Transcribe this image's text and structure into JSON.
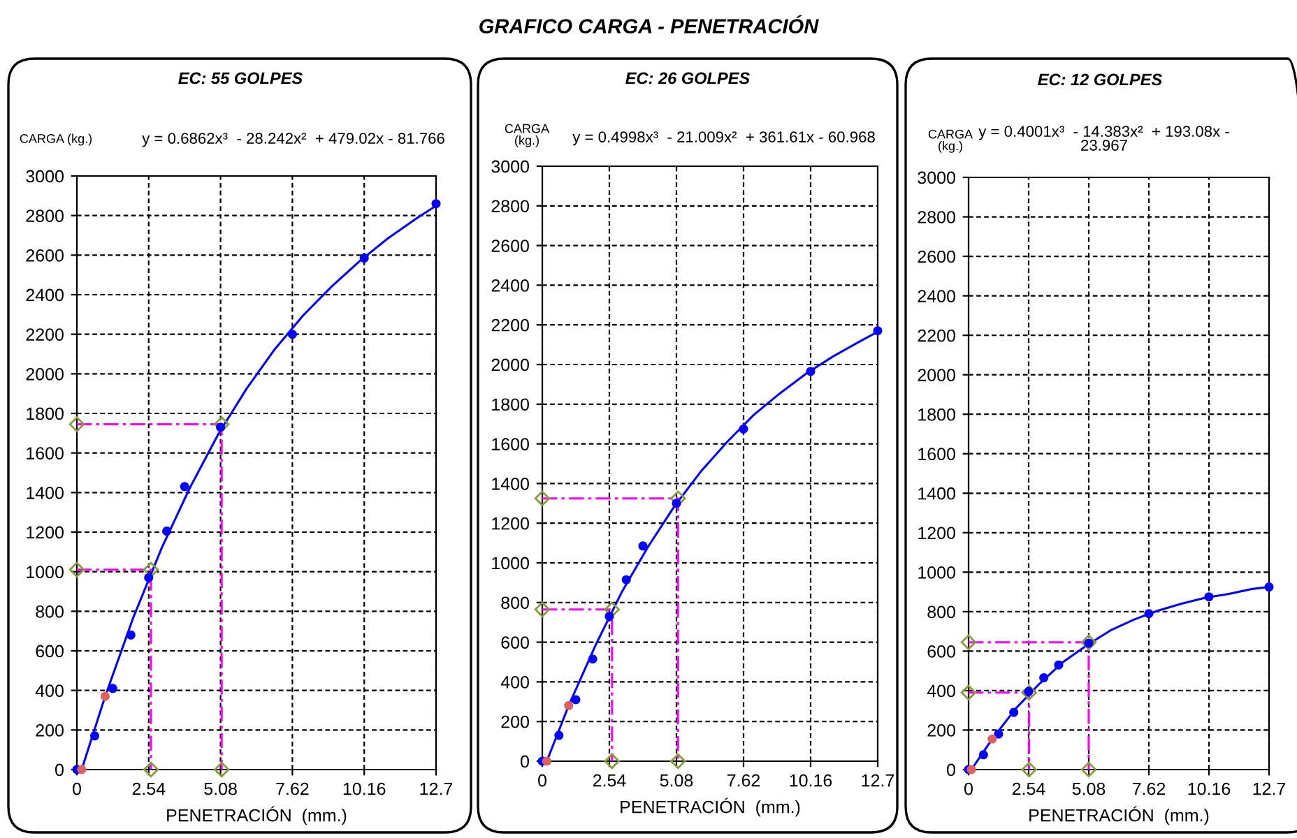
{
  "chart_data": [
    {
      "type": "scatter",
      "title": "EC: 55 GOLPES",
      "xlabel": "PENETRACIÓN  (mm.)",
      "ylabel": "CARGA (kg.)",
      "annotations": [
        "GRAFICO CARGA - PENETRACIÓN",
        "y = 0.6862x³  - 28.242x²  + 479.02x - 81.766"
      ],
      "xlim": [
        0,
        12.7
      ],
      "xticks": [
        0,
        2.54,
        5.08,
        7.62,
        10.16,
        12.7
      ],
      "ylim": [
        0,
        3000
      ],
      "yticks": [
        0,
        200,
        400,
        600,
        800,
        1000,
        1200,
        1400,
        1600,
        1800,
        2000,
        2200,
        2400,
        2600,
        2800,
        3000
      ],
      "grid": true,
      "series": [
        {
          "color": "#0000ff",
          "marker": "circle",
          "x": [
            0,
            0.63,
            1.27,
            1.91,
            2.54,
            3.18,
            3.81,
            5.08,
            7.62,
            10.16,
            12.7
          ],
          "values": [
            0,
            170,
            410,
            680,
            970,
            1205,
            1430,
            1730,
            2200,
            2585,
            2860
          ]
        },
        {
          "type": "line",
          "color": "#0000ff",
          "line_style": "solid",
          "marker": "none",
          "x": [
            0.17,
            1,
            2,
            3,
            4,
            5,
            6,
            7,
            8,
            9,
            10,
            11,
            12,
            12.7
          ],
          "values": [
            0,
            370,
            770,
            1120,
            1425,
            1695,
            1925,
            2125,
            2295,
            2440,
            2570,
            2685,
            2785,
            2850
          ]
        },
        {
          "type": "line",
          "color": "#ff00ff",
          "line_style": "dashed",
          "marker": "diamond",
          "x": [
            0,
            2.62,
            2.62
          ],
          "values": [
            1010,
            1010,
            0
          ]
        },
        {
          "type": "line",
          "color": "#ff00ff",
          "line_style": "dashed",
          "marker": "diamond",
          "x": [
            0,
            5.12,
            5.12
          ],
          "values": [
            1745,
            1745,
            0
          ]
        },
        {
          "color": "#e06060",
          "marker": "circle",
          "x": [
            0.17,
            1
          ],
          "values": [
            0,
            370
          ]
        }
      ]
    },
    {
      "type": "scatter",
      "title": "EC: 26 GOLPES",
      "xlabel": "PENETRACIÓN  (mm.)",
      "ylabel": "CARGA\n(kg.)",
      "annotations": [
        "y = 0.4998x³  - 21.009x²  + 361.61x - 60.968"
      ],
      "xlim": [
        0,
        12.7
      ],
      "xticks": [
        0,
        2.54,
        5.08,
        7.62,
        10.16,
        12.7
      ],
      "ylim": [
        0,
        3000
      ],
      "yticks": [
        0,
        200,
        400,
        600,
        800,
        1000,
        1200,
        1400,
        1600,
        1800,
        2000,
        2200,
        2400,
        2600,
        2800,
        3000
      ],
      "grid": true,
      "series": [
        {
          "color": "#0000ff",
          "marker": "circle",
          "x": [
            0,
            0.63,
            1.27,
            1.91,
            2.54,
            3.18,
            3.81,
            5.08,
            7.62,
            10.16,
            12.7
          ],
          "values": [
            0,
            130,
            310,
            515,
            730,
            915,
            1085,
            1300,
            1675,
            1965,
            2170
          ]
        },
        {
          "type": "line",
          "color": "#0000ff",
          "line_style": "solid",
          "marker": "none",
          "x": [
            0.17,
            1,
            2,
            3,
            4,
            5,
            6,
            7,
            8,
            9,
            10,
            11,
            12,
            12.7
          ],
          "values": [
            0,
            280,
            580,
            850,
            1080,
            1285,
            1460,
            1610,
            1745,
            1855,
            1955,
            2040,
            2115,
            2165
          ]
        },
        {
          "type": "line",
          "color": "#ff00ff",
          "line_style": "dashed",
          "marker": "diamond",
          "x": [
            0,
            2.64,
            2.64
          ],
          "values": [
            765,
            765,
            0
          ]
        },
        {
          "type": "line",
          "color": "#ff00ff",
          "line_style": "dashed",
          "marker": "diamond",
          "x": [
            0,
            5.14,
            5.14
          ],
          "values": [
            1325,
            1325,
            0
          ]
        },
        {
          "color": "#e06060",
          "marker": "circle",
          "x": [
            0.17,
            1
          ],
          "values": [
            0,
            280
          ]
        }
      ]
    },
    {
      "type": "scatter",
      "title": "EC: 12 GOLPES",
      "xlabel": "PENETRACIÓN  (mm.)",
      "ylabel": "CARGA\n(kg.)",
      "annotations": [
        "y = 0.4001x³  - 14.383x²  + 193.08x -\n23.967"
      ],
      "xlim": [
        0,
        12.7
      ],
      "xticks": [
        0,
        2.54,
        5.08,
        7.62,
        10.16,
        12.7
      ],
      "ylim": [
        0,
        3000
      ],
      "yticks": [
        0,
        200,
        400,
        600,
        800,
        1000,
        1200,
        1400,
        1600,
        1800,
        2000,
        2200,
        2400,
        2600,
        2800,
        3000
      ],
      "grid": true,
      "series": [
        {
          "color": "#0000ff",
          "marker": "circle",
          "x": [
            0,
            0.63,
            1.27,
            1.91,
            2.54,
            3.18,
            3.81,
            5.08,
            7.62,
            10.16,
            12.7
          ],
          "values": [
            0,
            75,
            180,
            290,
            395,
            465,
            530,
            640,
            790,
            875,
            925
          ]
        },
        {
          "type": "line",
          "color": "#0000ff",
          "line_style": "solid",
          "marker": "none",
          "x": [
            0.12,
            1,
            2,
            3,
            4,
            5,
            6,
            7,
            8,
            9,
            10,
            11,
            12,
            12.7
          ],
          "values": [
            0,
            155,
            310,
            435,
            545,
            630,
            705,
            760,
            805,
            840,
            870,
            890,
            915,
            925
          ]
        },
        {
          "type": "line",
          "color": "#ff00ff",
          "line_style": "dashed",
          "marker": "diamond",
          "x": [
            0,
            2.56,
            2.56
          ],
          "values": [
            390,
            390,
            0
          ]
        },
        {
          "type": "line",
          "color": "#ff00ff",
          "line_style": "dashed",
          "marker": "diamond",
          "x": [
            0,
            5.08,
            5.08
          ],
          "values": [
            645,
            645,
            0
          ]
        },
        {
          "color": "#e06060",
          "marker": "circle",
          "x": [
            0.12,
            1
          ],
          "values": [
            0,
            155
          ]
        }
      ]
    }
  ]
}
